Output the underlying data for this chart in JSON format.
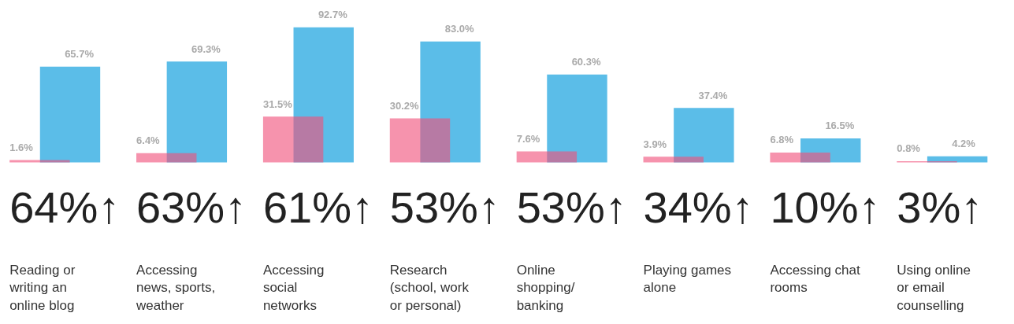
{
  "chart_data": {
    "type": "bar",
    "categories": [
      "Reading or writing an online blog",
      "Accessing news, sports, weather",
      "Accessing social networks",
      "Research (school, work or personal)",
      "Online shopping/ banking",
      "Playing games alone",
      "Accessing chat rooms",
      "Using online or email counselling"
    ],
    "series": [
      {
        "color": "#f0507a",
        "values": [
          1.6,
          6.4,
          31.5,
          30.2,
          7.6,
          3.9,
          6.8,
          0.8
        ],
        "value_labels": [
          "1.6%",
          "6.4%",
          "31.5%",
          "30.2%",
          "7.6%",
          "3.9%",
          "6.8%",
          "0.8%"
        ]
      },
      {
        "color": "#5bbde8",
        "values": [
          65.7,
          69.3,
          92.7,
          83.0,
          60.3,
          37.4,
          16.5,
          4.2
        ],
        "value_labels": [
          "65.7%",
          "69.3%",
          "92.7%",
          "83.0%",
          "60.3%",
          "37.4%",
          "16.5%",
          "4.2%"
        ]
      }
    ],
    "annotations": [
      "64%↑",
      "63%↑",
      "61%↑",
      "53%↑",
      "53%↑",
      "34%↑",
      "10%↑",
      "3%↑"
    ],
    "grid": false
  }
}
